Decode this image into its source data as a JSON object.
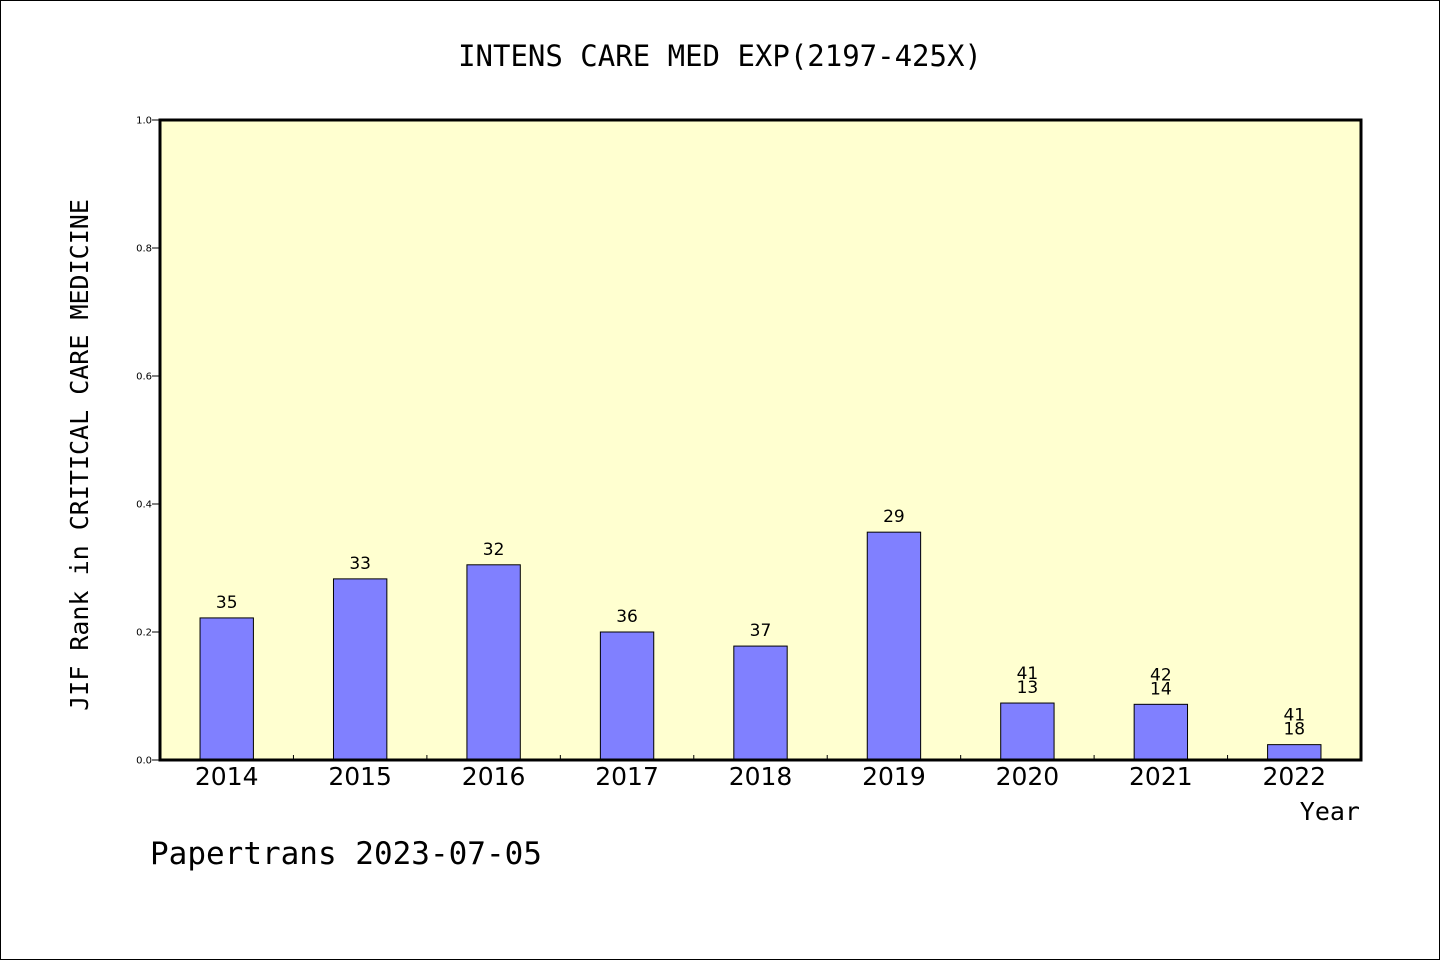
{
  "chart_data": {
    "type": "bar",
    "title": "INTENS CARE MED EXP(2197-425X)",
    "xlabel": "Year",
    "ylabel": "JIF Rank in CRITICAL CARE MEDICINE",
    "ylim": [
      0,
      1.0
    ],
    "yticks": [
      "0.0",
      "0.2",
      "0.4",
      "0.6",
      "0.8",
      "1.0"
    ],
    "ytick_values": [
      0,
      0.2,
      0.4,
      0.6,
      0.8,
      1.0
    ],
    "categories": [
      "2014",
      "2015",
      "2016",
      "2017",
      "2018",
      "2019",
      "2020",
      "2021",
      "2022"
    ],
    "values": [
      0.222,
      0.283,
      0.305,
      0.2,
      0.178,
      0.356,
      0.089,
      0.087,
      0.024
    ],
    "bar_labels": [
      [
        "35"
      ],
      [
        "33"
      ],
      [
        "32"
      ],
      [
        "36"
      ],
      [
        "37"
      ],
      [
        "29"
      ],
      [
        "41",
        "13"
      ],
      [
        "42",
        "14"
      ],
      [
        "41",
        "18"
      ]
    ],
    "grid": false,
    "colors": {
      "plot_background": "#ffffd0",
      "bar_fill": "#8080ff",
      "bar_stroke": "#000000"
    }
  },
  "footer": {
    "credit": "Papertrans 2023-07-05"
  }
}
